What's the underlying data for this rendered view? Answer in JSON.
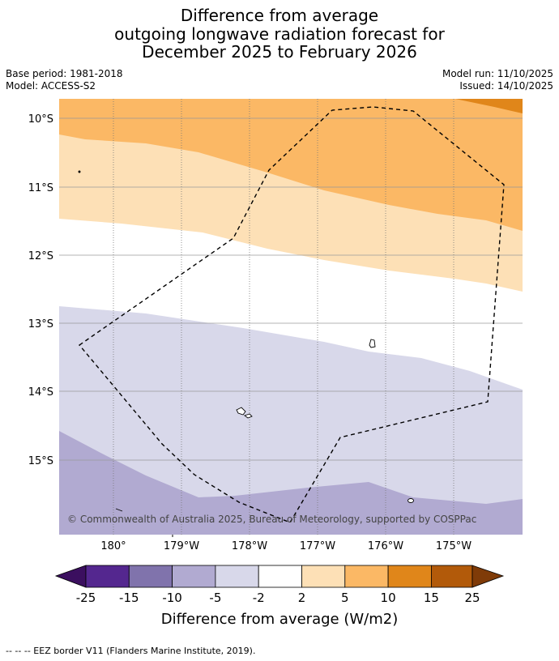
{
  "title": {
    "line1": "Difference from average",
    "line2": "outgoing longwave radiation forecast for",
    "line3": "December 2025 to February 2026"
  },
  "meta": {
    "base_period": "Base period: 1981-2018",
    "model": "Model: ACCESS-S2",
    "model_run": "Model run: 11/10/2025",
    "issued": "Issued: 14/10/2025"
  },
  "map": {
    "lat_labels": [
      "10°S",
      "11°S",
      "12°S",
      "13°S",
      "14°S",
      "15°S"
    ],
    "lon_labels": [
      "180°",
      "179°W",
      "178°W",
      "177°W",
      "176°W",
      "175°W"
    ],
    "copyright": "© Commonwealth of Australia 2025, Bureau of Meteorology, supported by COSPPac",
    "band_colors": {
      "pos15_25": "#b25a0a",
      "pos10_15": "#e0861a",
      "pos5_10": "#fbb865",
      "pos2_5": "#fde0b6",
      "neutral": "#ffffff",
      "neg5_2": "#d8d8ea",
      "neg10_5": "#b1aad1",
      "neg15_10": "#8073ac",
      "neg25_15": "#54278f"
    }
  },
  "legend": {
    "ticks": [
      "-25",
      "-15",
      "-10",
      "-5",
      "-2",
      "2",
      "5",
      "10",
      "15",
      "25"
    ],
    "colors": [
      "#3b0f5f",
      "#54278f",
      "#8073ac",
      "#b1aad1",
      "#d8d8ea",
      "#ffffff",
      "#fde0b6",
      "#fbb865",
      "#e0861a",
      "#b25a0a",
      "#7f3b08"
    ],
    "label": "Difference from average (W/m2)"
  },
  "footnote": "-- -- -- EEZ border V11 (Flanders Marine Institute, 2019)."
}
